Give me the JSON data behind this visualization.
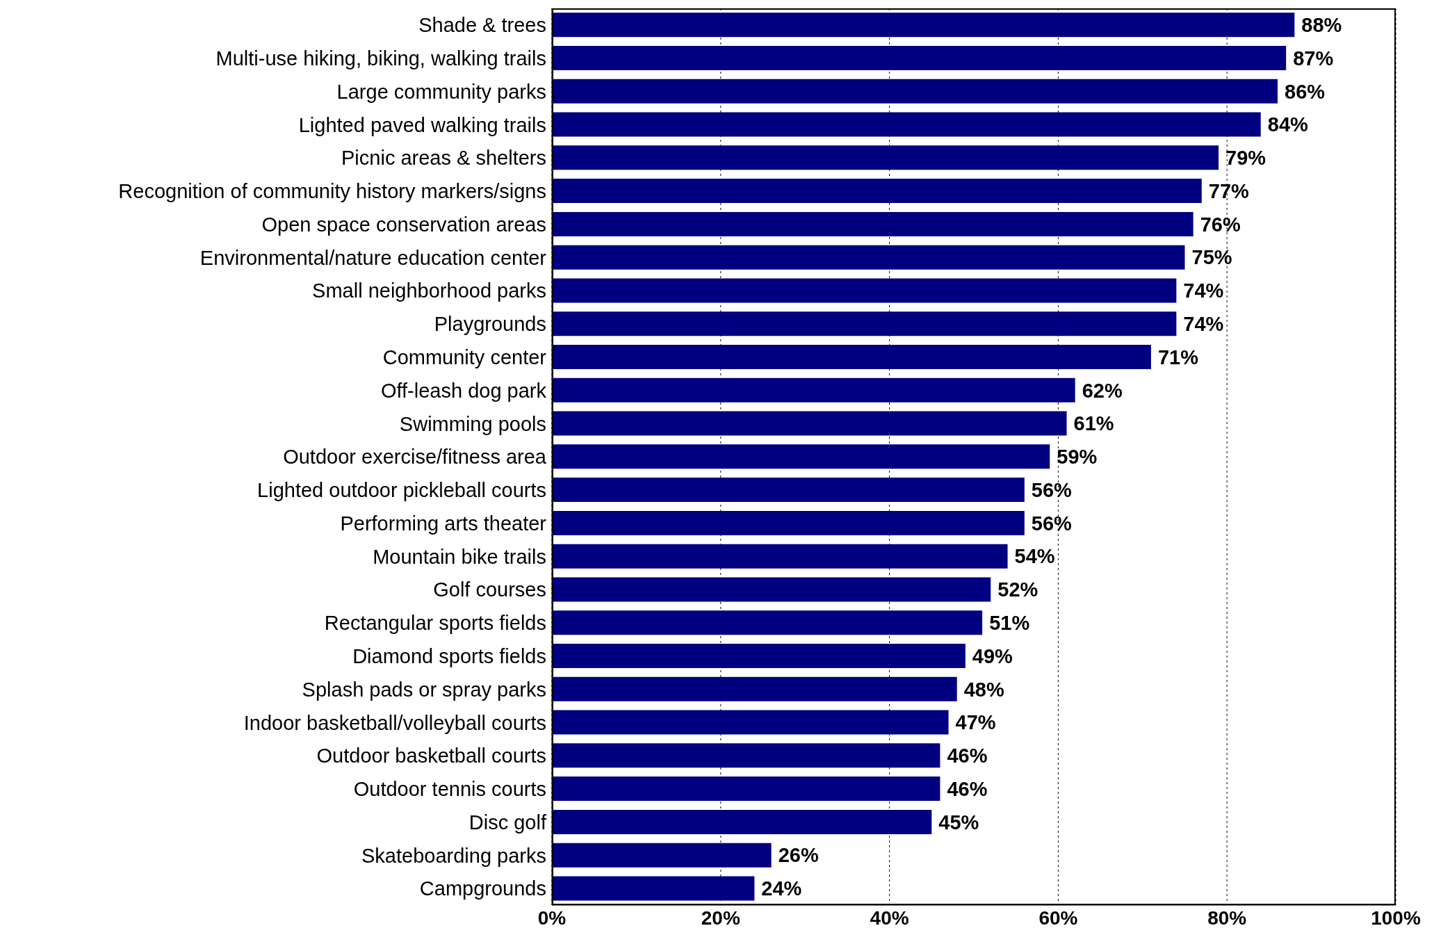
{
  "chart_data": {
    "type": "bar",
    "orientation": "horizontal",
    "categories": [
      "Shade & trees",
      "Multi-use hiking, biking, walking trails",
      "Large community parks",
      "Lighted paved walking trails",
      "Picnic areas & shelters",
      "Recognition of community history markers/signs",
      "Open space conservation areas",
      "Environmental/nature education center",
      "Small neighborhood parks",
      "Playgrounds",
      "Community center",
      "Off-leash dog park",
      "Swimming pools",
      "Outdoor exercise/fitness area",
      "Lighted outdoor pickleball courts",
      "Performing arts theater",
      "Mountain bike trails",
      "Golf courses",
      "Rectangular sports fields",
      "Diamond sports fields",
      "Splash pads or spray parks",
      "Indoor basketball/volleyball courts",
      "Outdoor basketball courts",
      "Outdoor tennis courts",
      "Disc golf",
      "Skateboarding parks",
      "Campgrounds"
    ],
    "values": [
      88,
      87,
      86,
      84,
      79,
      77,
      76,
      75,
      74,
      74,
      71,
      62,
      61,
      59,
      56,
      56,
      54,
      52,
      51,
      49,
      48,
      47,
      46,
      46,
      45,
      26,
      24
    ],
    "value_labels": [
      "88%",
      "87%",
      "86%",
      "84%",
      "79%",
      "77%",
      "76%",
      "75%",
      "74%",
      "74%",
      "71%",
      "62%",
      "61%",
      "59%",
      "56%",
      "56%",
      "54%",
      "52%",
      "51%",
      "49%",
      "48%",
      "47%",
      "46%",
      "46%",
      "45%",
      "26%",
      "24%"
    ],
    "color": "#000080",
    "xlim": [
      0,
      100
    ],
    "xticks": [
      {
        "value": 0,
        "label": "0%"
      },
      {
        "value": 20,
        "label": "20%"
      },
      {
        "value": 40,
        "label": "40%"
      },
      {
        "value": 60,
        "label": "60%"
      },
      {
        "value": 80,
        "label": "80%"
      },
      {
        "value": 100,
        "label": "100%"
      }
    ],
    "grid": "x",
    "line_style": "dotted"
  }
}
